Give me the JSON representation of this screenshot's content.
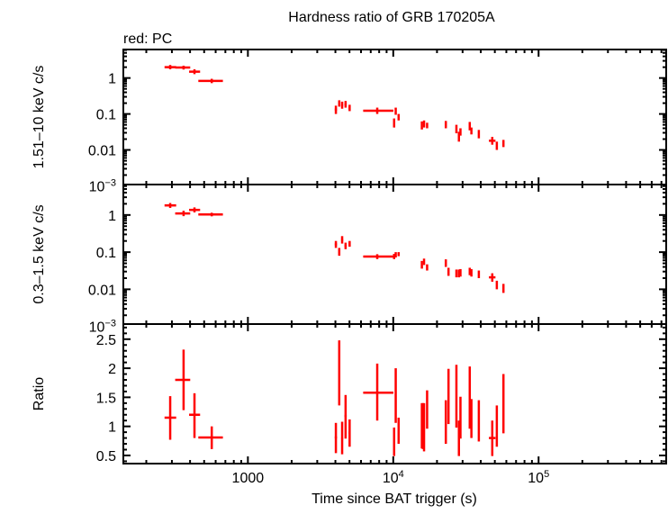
{
  "chart_data": {
    "type": "scatter",
    "title": "Hardness ratio of GRB 170205A",
    "legend_text": "red: PC",
    "xlabel": "Time since BAT trigger (s)",
    "xscale": "log",
    "xlim": [
      139,
      755000
    ],
    "x_tick_labels": [
      {
        "v": 1000,
        "label": "1000"
      },
      {
        "v": 10000,
        "base": "10",
        "exp": "4"
      },
      {
        "v": 100000,
        "base": "10",
        "exp": "5"
      }
    ],
    "color": "#ff0000",
    "point_format": [
      "t",
      "t_lo",
      "t_hi",
      "value",
      "value_lo",
      "value_hi"
    ],
    "panels": [
      {
        "ylabel": "1.51–10 keV c/s",
        "yscale": "log",
        "ylim": [
          0.00109,
          6.2
        ],
        "y_tick_labels": [
          {
            "v": 1,
            "label": "1"
          },
          {
            "v": 0.1,
            "label": "0.1"
          },
          {
            "v": 0.01,
            "label": "0.01"
          },
          {
            "v": 0.001,
            "base": "10",
            "exp": "−3"
          }
        ],
        "points": [
          [
            292,
            267,
            321,
            2.0,
            1.75,
            2.3
          ],
          [
            361,
            316,
            401,
            1.96,
            1.72,
            2.2
          ],
          [
            429,
            394,
            469,
            1.5,
            1.28,
            1.75
          ],
          [
            564,
            456,
            673,
            0.83,
            0.72,
            0.95
          ],
          [
            4030,
            3960,
            4100,
            0.133,
            0.1,
            0.17
          ],
          [
            4250,
            4200,
            4300,
            0.195,
            0.16,
            0.24
          ],
          [
            4450,
            4380,
            4520,
            0.177,
            0.14,
            0.22
          ],
          [
            4700,
            4620,
            4780,
            0.185,
            0.15,
            0.23
          ],
          [
            5010,
            4930,
            5090,
            0.146,
            0.12,
            0.18
          ],
          [
            7760,
            6210,
            10020,
            0.123,
            0.1,
            0.15
          ],
          [
            10140,
            10080,
            10200,
            0.056,
            0.042,
            0.075
          ],
          [
            10400,
            10330,
            10470,
            0.12,
            0.095,
            0.15
          ],
          [
            10890,
            10780,
            11000,
            0.083,
            0.066,
            0.1
          ],
          [
            15740,
            15600,
            15880,
            0.048,
            0.037,
            0.062
          ],
          [
            16290,
            16150,
            16430,
            0.053,
            0.042,
            0.066
          ],
          [
            17100,
            16900,
            17300,
            0.048,
            0.04,
            0.057
          ],
          [
            23000,
            22700,
            23300,
            0.051,
            0.04,
            0.064
          ],
          [
            27200,
            27000,
            27400,
            0.038,
            0.029,
            0.05
          ],
          [
            28300,
            28100,
            28500,
            0.024,
            0.017,
            0.032
          ],
          [
            29000,
            28750,
            29250,
            0.032,
            0.025,
            0.04
          ],
          [
            33600,
            33400,
            33800,
            0.046,
            0.035,
            0.06
          ],
          [
            34500,
            34200,
            34800,
            0.034,
            0.027,
            0.042
          ],
          [
            38800,
            38500,
            39100,
            0.028,
            0.021,
            0.036
          ],
          [
            48000,
            45500,
            50500,
            0.018,
            0.014,
            0.023
          ],
          [
            51600,
            51000,
            52200,
            0.0133,
            0.01,
            0.017
          ],
          [
            57300,
            56800,
            57800,
            0.0153,
            0.012,
            0.019
          ]
        ]
      },
      {
        "ylabel": "0.3–1.5 keV c/s",
        "yscale": "log",
        "ylim": [
          0.00116,
          6.6
        ],
        "y_tick_labels": [
          {
            "v": 1,
            "label": "1"
          },
          {
            "v": 0.1,
            "label": "0.1"
          },
          {
            "v": 0.01,
            "label": "0.01"
          },
          {
            "v": 0.001,
            "base": "10",
            "exp": "−3"
          }
        ],
        "points": [
          [
            292,
            267,
            321,
            1.81,
            1.55,
            2.1
          ],
          [
            361,
            316,
            401,
            1.1,
            0.93,
            1.3
          ],
          [
            429,
            394,
            469,
            1.37,
            1.17,
            1.6
          ],
          [
            564,
            456,
            673,
            1.03,
            0.92,
            1.15
          ],
          [
            4030,
            3960,
            4100,
            0.162,
            0.13,
            0.2
          ],
          [
            4250,
            4200,
            4300,
            0.102,
            0.08,
            0.13
          ],
          [
            4450,
            4380,
            4520,
            0.214,
            0.17,
            0.27
          ],
          [
            4700,
            4620,
            4780,
            0.148,
            0.12,
            0.18
          ],
          [
            5010,
            4930,
            5090,
            0.168,
            0.14,
            0.2
          ],
          [
            7760,
            6210,
            10020,
            0.076,
            0.065,
            0.088
          ],
          [
            10140,
            10080,
            10200,
            0.077,
            0.065,
            0.09
          ],
          [
            10400,
            10330,
            10470,
            0.085,
            0.072,
            0.1
          ],
          [
            10890,
            10780,
            11000,
            0.089,
            0.078,
            0.1
          ],
          [
            15740,
            15600,
            15880,
            0.046,
            0.036,
            0.058
          ],
          [
            16290,
            16150,
            16430,
            0.055,
            0.045,
            0.067
          ],
          [
            17100,
            16900,
            17300,
            0.039,
            0.032,
            0.047
          ],
          [
            23000,
            22700,
            23300,
            0.051,
            0.04,
            0.064
          ],
          [
            24000,
            23800,
            24200,
            0.03,
            0.023,
            0.038
          ],
          [
            27200,
            27000,
            27400,
            0.027,
            0.021,
            0.034
          ],
          [
            28300,
            28100,
            28500,
            0.027,
            0.021,
            0.034
          ],
          [
            29000,
            28750,
            29250,
            0.028,
            0.022,
            0.035
          ],
          [
            33600,
            33400,
            33800,
            0.03,
            0.024,
            0.038
          ],
          [
            34500,
            34200,
            34800,
            0.028,
            0.022,
            0.035
          ],
          [
            38800,
            38500,
            39100,
            0.025,
            0.02,
            0.032
          ],
          [
            48000,
            45500,
            50500,
            0.021,
            0.016,
            0.027
          ],
          [
            51600,
            51000,
            52200,
            0.013,
            0.01,
            0.017
          ],
          [
            57300,
            56800,
            57800,
            0.0105,
            0.008,
            0.014
          ]
        ]
      },
      {
        "ylabel": "Ratio",
        "yscale": "linear",
        "ylim": [
          0.36,
          2.76
        ],
        "y_tick_labels": [
          {
            "v": 0.5,
            "label": "0.5"
          },
          {
            "v": 1,
            "label": "1"
          },
          {
            "v": 1.5,
            "label": "1.5"
          },
          {
            "v": 2,
            "label": "2"
          },
          {
            "v": 2.5,
            "label": "2.5"
          }
        ],
        "points": [
          [
            292,
            267,
            321,
            1.15,
            0.77,
            1.52
          ],
          [
            361,
            316,
            401,
            1.8,
            1.28,
            2.32
          ],
          [
            429,
            394,
            469,
            1.2,
            0.8,
            1.57
          ],
          [
            564,
            456,
            673,
            0.81,
            0.61,
            1.0
          ],
          [
            4030,
            3960,
            4100,
            0.81,
            0.54,
            1.06
          ],
          [
            4250,
            4200,
            4300,
            1.93,
            1.36,
            2.48
          ],
          [
            4450,
            4380,
            4520,
            0.79,
            0.52,
            1.08
          ],
          [
            4700,
            4620,
            4780,
            1.18,
            0.79,
            1.54
          ],
          [
            5010,
            4930,
            5090,
            0.89,
            0.65,
            1.12
          ],
          [
            7760,
            6210,
            10020,
            1.58,
            1.1,
            2.08
          ],
          [
            10140,
            10080,
            10200,
            0.73,
            0.49,
            0.98
          ],
          [
            10400,
            10330,
            10470,
            1.54,
            1.06,
            2.0
          ],
          [
            10890,
            10780,
            11000,
            0.94,
            0.7,
            1.15
          ],
          [
            15740,
            15600,
            15880,
            1.01,
            0.62,
            1.4
          ],
          [
            16000,
            15900,
            16100,
            1.19,
            0.61,
            1.4
          ],
          [
            16290,
            16150,
            16430,
            0.91,
            0.57,
            1.4
          ],
          [
            17100,
            16900,
            17300,
            1.29,
            0.96,
            1.62
          ],
          [
            23000,
            22700,
            23300,
            1.07,
            0.7,
            1.45
          ],
          [
            24000,
            23800,
            24200,
            1.51,
            1.04,
            1.99
          ],
          [
            27200,
            27000,
            27400,
            1.52,
            0.98,
            2.06
          ],
          [
            28300,
            28100,
            28500,
            0.79,
            0.49,
            1.1
          ],
          [
            29000,
            28750,
            29250,
            1.15,
            0.79,
            1.51
          ],
          [
            33600,
            33400,
            33800,
            1.5,
            0.96,
            2.03
          ],
          [
            34500,
            34200,
            34800,
            1.13,
            0.8,
            1.47
          ],
          [
            38800,
            38500,
            39100,
            1.1,
            0.74,
            1.45
          ],
          [
            48000,
            45500,
            50500,
            0.8,
            0.49,
            1.1
          ],
          [
            51600,
            51000,
            52200,
            0.99,
            0.65,
            1.36
          ],
          [
            57300,
            56800,
            57800,
            1.38,
            0.88,
            1.9
          ]
        ]
      }
    ]
  }
}
